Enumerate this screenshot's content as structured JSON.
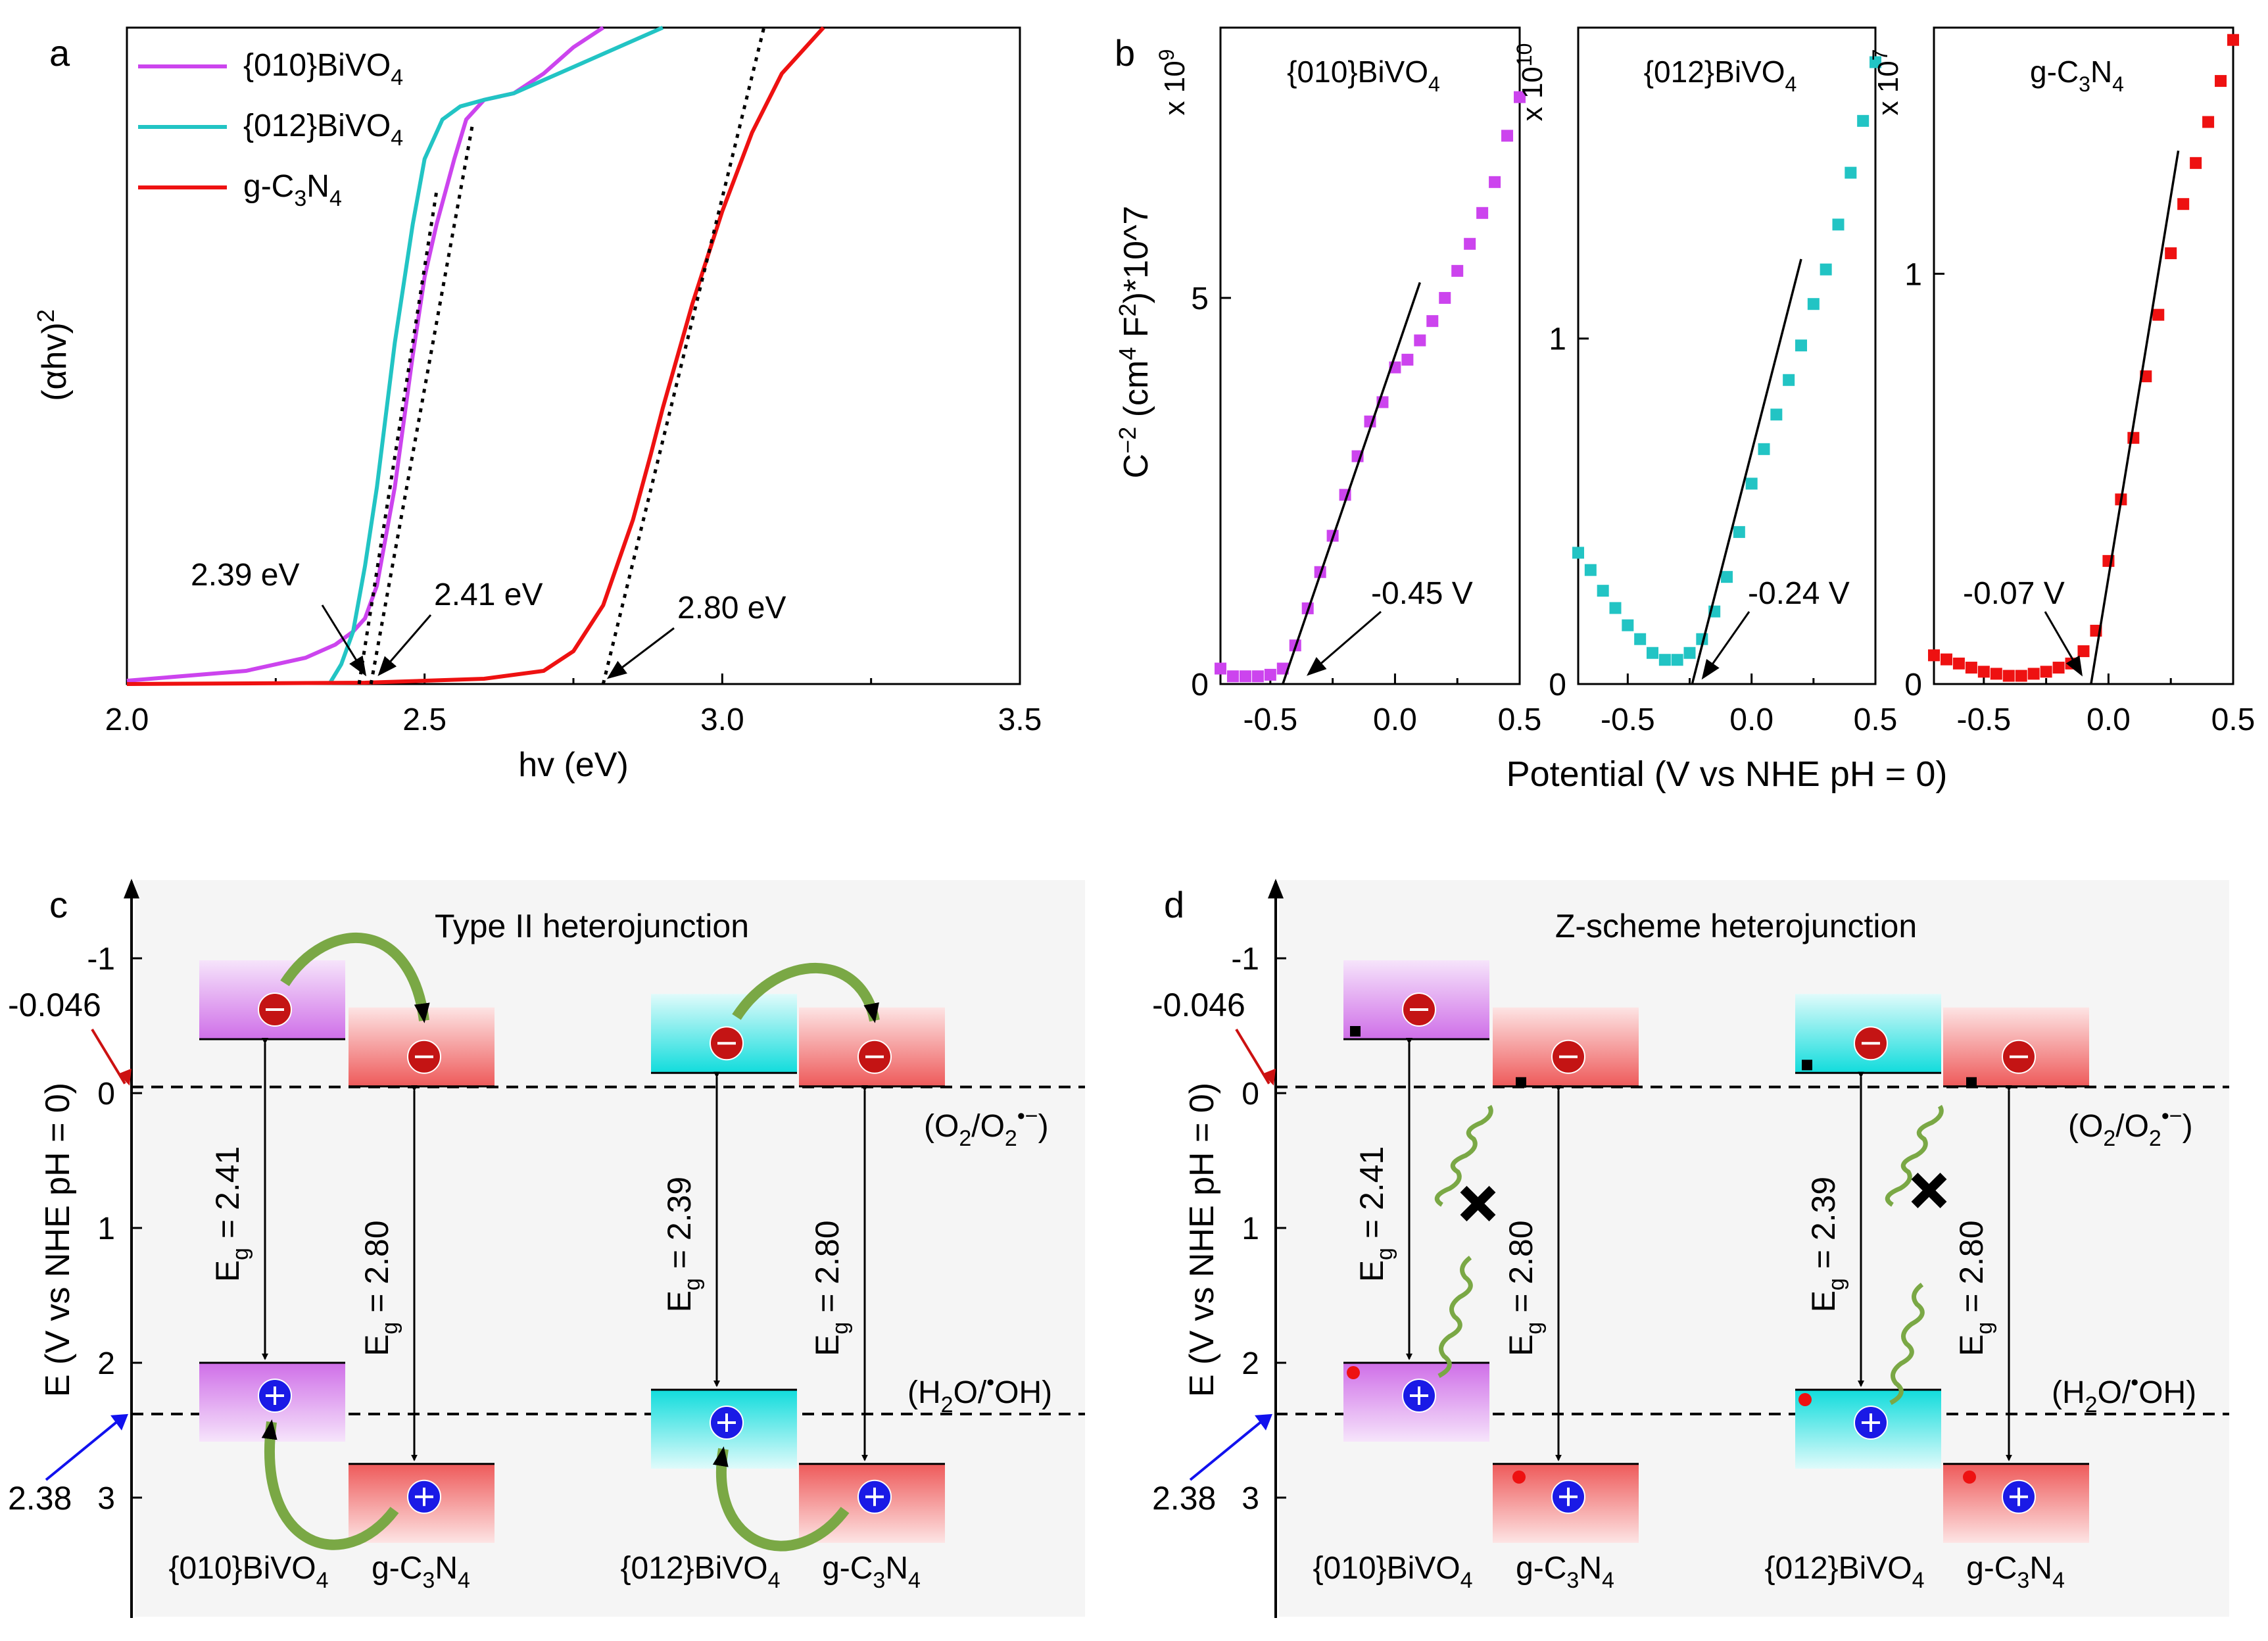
{
  "chart_data": [
    {
      "panel": "a",
      "type": "line",
      "xlabel": "hv (eV)",
      "ylabel": "(αhv)",
      "ylabel_sup": "2",
      "xlim": [
        2.0,
        3.5
      ],
      "ylim": [
        0,
        1
      ],
      "xticks": [
        "2.0",
        "2.5",
        "3.0",
        "3.5"
      ],
      "legend": [
        {
          "label": "{010}BiVO",
          "sub": "4",
          "color": "#cc44ee"
        },
        {
          "label": "{012}BiVO",
          "sub": "4",
          "color": "#22c4c4"
        },
        {
          "label": "g-C",
          "sub": "3",
          "label2": "N",
          "sub2": "4",
          "color": "#ee1111"
        }
      ],
      "series": [
        {
          "name": "{010}BiVO4",
          "color": "#cc44ee",
          "x": [
            2.0,
            2.2,
            2.3,
            2.35,
            2.38,
            2.4,
            2.42,
            2.45,
            2.48,
            2.5,
            2.52,
            2.55,
            2.57,
            2.6,
            2.65,
            2.7,
            2.75,
            2.8
          ],
          "y": [
            0.005,
            0.02,
            0.04,
            0.06,
            0.08,
            0.1,
            0.15,
            0.3,
            0.5,
            0.62,
            0.7,
            0.8,
            0.86,
            0.89,
            0.9,
            0.93,
            0.97,
            1.0
          ]
        },
        {
          "name": "{012}BiVO4",
          "color": "#22c4c4",
          "x": [
            2.34,
            2.36,
            2.38,
            2.4,
            2.42,
            2.45,
            2.48,
            2.5,
            2.53,
            2.56,
            2.6,
            2.65,
            2.7,
            2.8,
            2.9
          ],
          "y": [
            0.0,
            0.03,
            0.08,
            0.18,
            0.3,
            0.52,
            0.7,
            0.8,
            0.86,
            0.88,
            0.89,
            0.9,
            0.92,
            0.96,
            1.0
          ]
        },
        {
          "name": "g-C3N4",
          "color": "#ee1111",
          "x": [
            2.0,
            2.4,
            2.6,
            2.7,
            2.75,
            2.8,
            2.85,
            2.88,
            2.9,
            2.95,
            3.0,
            3.05,
            3.1,
            3.17
          ],
          "y": [
            0.0,
            0.002,
            0.008,
            0.02,
            0.05,
            0.12,
            0.25,
            0.35,
            0.42,
            0.58,
            0.72,
            0.84,
            0.93,
            1.0
          ]
        }
      ],
      "fits": [
        {
          "x": [
            2.39,
            2.52
          ],
          "y": [
            0.0,
            0.75
          ]
        },
        {
          "x": [
            2.41,
            2.58
          ],
          "y": [
            0.0,
            0.85
          ]
        },
        {
          "x": [
            2.8,
            3.07
          ],
          "y": [
            0.0,
            1.0
          ]
        }
      ],
      "annotations": [
        {
          "text": "2.39 eV",
          "x": 2.39
        },
        {
          "text": "2.41 eV",
          "x": 2.41
        },
        {
          "text": "2.80 eV",
          "x": 2.8
        }
      ]
    },
    {
      "panel": "b",
      "type": "scatter",
      "xlabel": "Potential (V vs NHE pH = 0)",
      "ylabel": "C",
      "ylabel_sup": "−2",
      "ylabel_rest": " (cm",
      "ylabel_sup2": "4",
      "ylabel_rest2": " F",
      "ylabel_sup3": "2",
      "ylabel_rest3": ")*10^7",
      "xlim": [
        -0.7,
        0.5
      ],
      "xticks": [
        "-0.5",
        "0.0",
        "0.5"
      ],
      "subplots": [
        {
          "title": "{010}BiVO",
          "title_sub": "4",
          "scale": "x 10",
          "scale_exp": "9",
          "color": "#cc44ee",
          "ylim": [
            0,
            8.5
          ],
          "yticks": [
            0,
            5
          ],
          "ytick_labels": [
            "0",
            "5"
          ],
          "x": [
            -0.7,
            -0.65,
            -0.6,
            -0.55,
            -0.5,
            -0.45,
            -0.4,
            -0.35,
            -0.3,
            -0.25,
            -0.2,
            -0.15,
            -0.1,
            -0.05,
            0.0,
            0.05,
            0.1,
            0.15,
            0.2,
            0.25,
            0.3,
            0.35,
            0.4,
            0.45,
            0.5
          ],
          "y": [
            0.2,
            0.1,
            0.1,
            0.1,
            0.12,
            0.2,
            0.5,
            0.98,
            1.45,
            1.92,
            2.45,
            2.95,
            3.4,
            3.65,
            4.1,
            4.2,
            4.45,
            4.7,
            5.0,
            5.35,
            5.7,
            6.1,
            6.5,
            7.1,
            7.6
          ],
          "fit": {
            "x": [
              -0.45,
              0.1
            ],
            "y": [
              0.0,
              5.2
            ]
          },
          "annotation": {
            "text": "-0.45 V",
            "x": -0.45
          }
        },
        {
          "title": "{012}BiVO",
          "title_sub": "4",
          "scale": "x 10",
          "scale_exp": "10",
          "color": "#22c4c4",
          "ylim": [
            0,
            1.9
          ],
          "yticks": [
            0,
            1
          ],
          "ytick_labels": [
            "0",
            "1"
          ],
          "x": [
            -0.7,
            -0.65,
            -0.6,
            -0.55,
            -0.5,
            -0.45,
            -0.4,
            -0.35,
            -0.3,
            -0.25,
            -0.2,
            -0.15,
            -0.1,
            -0.05,
            0.0,
            0.05,
            0.1,
            0.15,
            0.2,
            0.25,
            0.3,
            0.35,
            0.4,
            0.45,
            0.5
          ],
          "y": [
            0.38,
            0.33,
            0.27,
            0.22,
            0.17,
            0.13,
            0.09,
            0.07,
            0.07,
            0.09,
            0.13,
            0.21,
            0.31,
            0.44,
            0.58,
            0.68,
            0.78,
            0.88,
            0.98,
            1.1,
            1.2,
            1.33,
            1.48,
            1.63,
            1.8
          ],
          "fit": {
            "x": [
              -0.24,
              0.2
            ],
            "y": [
              0.0,
              1.23
            ]
          },
          "annotation": {
            "text": "-0.24 V",
            "x": -0.24
          }
        },
        {
          "title": "g-C",
          "title_sub": "3",
          "title2": "N",
          "title_sub2": "4",
          "scale": "x 10",
          "scale_exp": "7",
          "color": "#ee1111",
          "ylim": [
            0,
            1.6
          ],
          "yticks": [
            0,
            1
          ],
          "ytick_labels": [
            "0",
            "1"
          ],
          "x": [
            -0.7,
            -0.65,
            -0.6,
            -0.55,
            -0.5,
            -0.45,
            -0.4,
            -0.35,
            -0.3,
            -0.25,
            -0.2,
            -0.15,
            -0.1,
            -0.05,
            0.0,
            0.05,
            0.1,
            0.15,
            0.2,
            0.25,
            0.3,
            0.35,
            0.4,
            0.45,
            0.5
          ],
          "y": [
            0.07,
            0.06,
            0.05,
            0.04,
            0.03,
            0.025,
            0.02,
            0.02,
            0.025,
            0.03,
            0.04,
            0.05,
            0.08,
            0.13,
            0.3,
            0.45,
            0.6,
            0.75,
            0.9,
            1.05,
            1.17,
            1.27,
            1.37,
            1.47,
            1.57
          ],
          "fit": {
            "x": [
              -0.07,
              0.28
            ],
            "y": [
              0.0,
              1.3
            ]
          },
          "annotation": {
            "text": "-0.07 V",
            "x": -0.07
          }
        }
      ]
    },
    {
      "panel": "c",
      "type": "diagram",
      "title": "Type II heterojunction",
      "ylabel": "E (V vs NHE pH = 0)",
      "ylim": [
        -1.5,
        3.9
      ],
      "yticks": [
        "-1",
        "0",
        "1",
        "2",
        "3"
      ],
      "ref_lines": [
        {
          "value": -0.046,
          "label": "-0.046",
          "color": "#cc1111",
          "note": "(O2/O2•−)"
        },
        {
          "value": 2.38,
          "label": "2.38",
          "color": "#1111ee",
          "note": "(H2O/•OH)"
        }
      ],
      "materials": [
        {
          "label": "{010}BiVO",
          "sub": "4",
          "cb": -0.4,
          "vb": 2.0,
          "eg": "2.41",
          "color": "#d888ee"
        },
        {
          "label": "g-C",
          "sub": "3",
          "label2": "N",
          "sub2": "4",
          "cb": -0.05,
          "vb": 2.75,
          "eg": "2.80",
          "color": "#f06a6a"
        },
        {
          "label": "{012}BiVO",
          "sub": "4",
          "cb": -0.15,
          "vb": 2.2,
          "eg": "2.39",
          "color": "#22dddd"
        },
        {
          "label": "g-C",
          "sub": "3",
          "label2": "N",
          "sub2": "4",
          "cb": -0.05,
          "vb": 2.75,
          "eg": "2.80",
          "color": "#f06a6a"
        }
      ]
    },
    {
      "panel": "d",
      "type": "diagram",
      "title": "Z-scheme heterojunction",
      "ylabel": "E (V vs NHE pH = 0)",
      "ylim": [
        -1.5,
        3.9
      ],
      "yticks": [
        "-1",
        "0",
        "1",
        "2",
        "3"
      ],
      "ref_lines": [
        {
          "value": -0.046,
          "label": "-0.046",
          "color": "#cc1111",
          "note": "(O2/O2•−)"
        },
        {
          "value": 2.38,
          "label": "2.38",
          "color": "#1111ee",
          "note": "(H2O/•OH)"
        }
      ]
    }
  ],
  "labels": {
    "a": "a",
    "b": "b",
    "c": "c",
    "d": "d",
    "eg_prefix": "E",
    "eg_sub": "g",
    "eg_eq": " = ",
    "o2_note_a": "(O",
    "o2_note_b": "2",
    "o2_note_c": "/O",
    "o2_note_d": "2",
    "o2_note_e": "•−",
    "o2_note_f": ")",
    "h2o_note_a": "(H",
    "h2o_note_b": "2",
    "h2o_note_c": "O/",
    "h2o_note_d": "•",
    "h2o_note_e": "OH)"
  }
}
